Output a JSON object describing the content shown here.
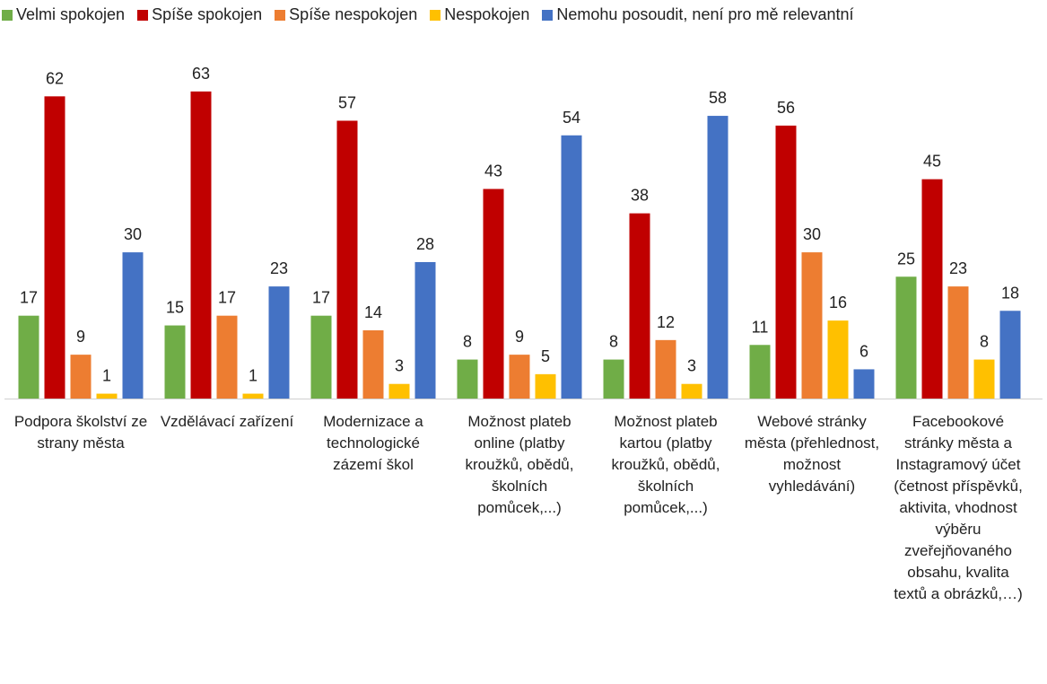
{
  "chart_data": {
    "type": "bar",
    "categories": [
      "Podpora školství ze strany města",
      "Vzdělávací zařízení",
      "Modernizace a technologické zázemí škol",
      "Možnost plateb online (platby kroužků, obědů, školních pomůcek,...)",
      "Možnost plateb kartou (platby kroužků, obědů, školních pomůcek,...)",
      "Webové stránky města (přehlednost, možnost vyhledávání)",
      "Facebookové stránky města a Instagramový účet (četnost příspěvků, aktivita, vhodnost výběru zveřejňovaného obsahu, kvalita textů a obrázků,…)"
    ],
    "series": [
      {
        "name": "Velmi spokojen",
        "color": "#70ad47",
        "values": [
          17,
          15,
          17,
          8,
          8,
          11,
          25
        ]
      },
      {
        "name": "Spíše spokojen",
        "color": "#c00000",
        "values": [
          62,
          63,
          57,
          43,
          38,
          56,
          45
        ]
      },
      {
        "name": "Spíše nespokojen",
        "color": "#ed7d31",
        "values": [
          9,
          17,
          14,
          9,
          12,
          30,
          23
        ]
      },
      {
        "name": "Nespokojen",
        "color": "#ffc000",
        "values": [
          1,
          1,
          3,
          5,
          3,
          16,
          8
        ]
      },
      {
        "name": "Nemohu posoudit, není pro mě relevantní",
        "color": "#4472c4",
        "values": [
          30,
          23,
          28,
          54,
          58,
          6,
          18
        ]
      }
    ],
    "legend": "top"
  }
}
